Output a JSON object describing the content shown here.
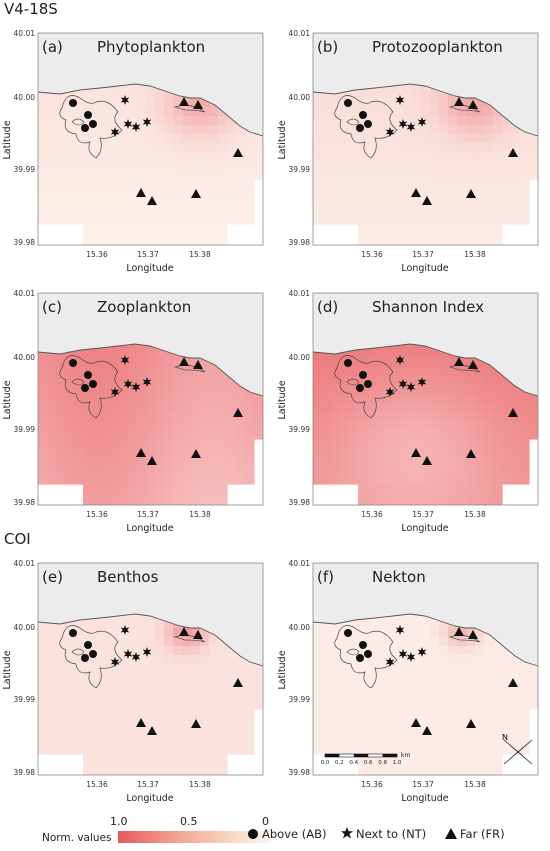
{
  "section_top": "V4-18S",
  "section_bottom": "COI",
  "axis": {
    "xlabel": "Longitude",
    "ylabel": "Latitude",
    "xticks": [
      "15.36",
      "15.37",
      "15.38"
    ],
    "yticks": [
      "40.01",
      "40.00",
      "39.99",
      "39.98"
    ]
  },
  "panels": [
    {
      "letter": "(a)",
      "title": "Phytoplankton",
      "intensity": 0.15
    },
    {
      "letter": "(b)",
      "title": "Protozooplankton",
      "intensity": 0.18
    },
    {
      "letter": "(c)",
      "title": "Zooplankton",
      "intensity": 0.45
    },
    {
      "letter": "(d)",
      "title": "Shannon Index",
      "intensity": 0.6
    },
    {
      "letter": "(e)",
      "title": "Benthos",
      "intensity": 0.12
    },
    {
      "letter": "(f)",
      "title": "Nekton",
      "intensity": 0.06
    }
  ],
  "scalebar": {
    "ticks": [
      "0.0",
      "0.2",
      "0.4",
      "0.6",
      "0.8",
      "1.0"
    ],
    "unit": "km"
  },
  "compass_label": "N",
  "legend": {
    "title": "Norm. values",
    "ticks": [
      "1.0",
      "0.5",
      "0"
    ],
    "items": [
      {
        "symbol": "circle",
        "label": "Above (AB)"
      },
      {
        "symbol": "star",
        "label": "Next to (NT)"
      },
      {
        "symbol": "triangle",
        "label": "Far (FR)"
      }
    ]
  },
  "colors": {
    "high": "#e8575e",
    "mid": "#f2a594",
    "low": "#fdf6ee",
    "land": "#ececec"
  }
}
